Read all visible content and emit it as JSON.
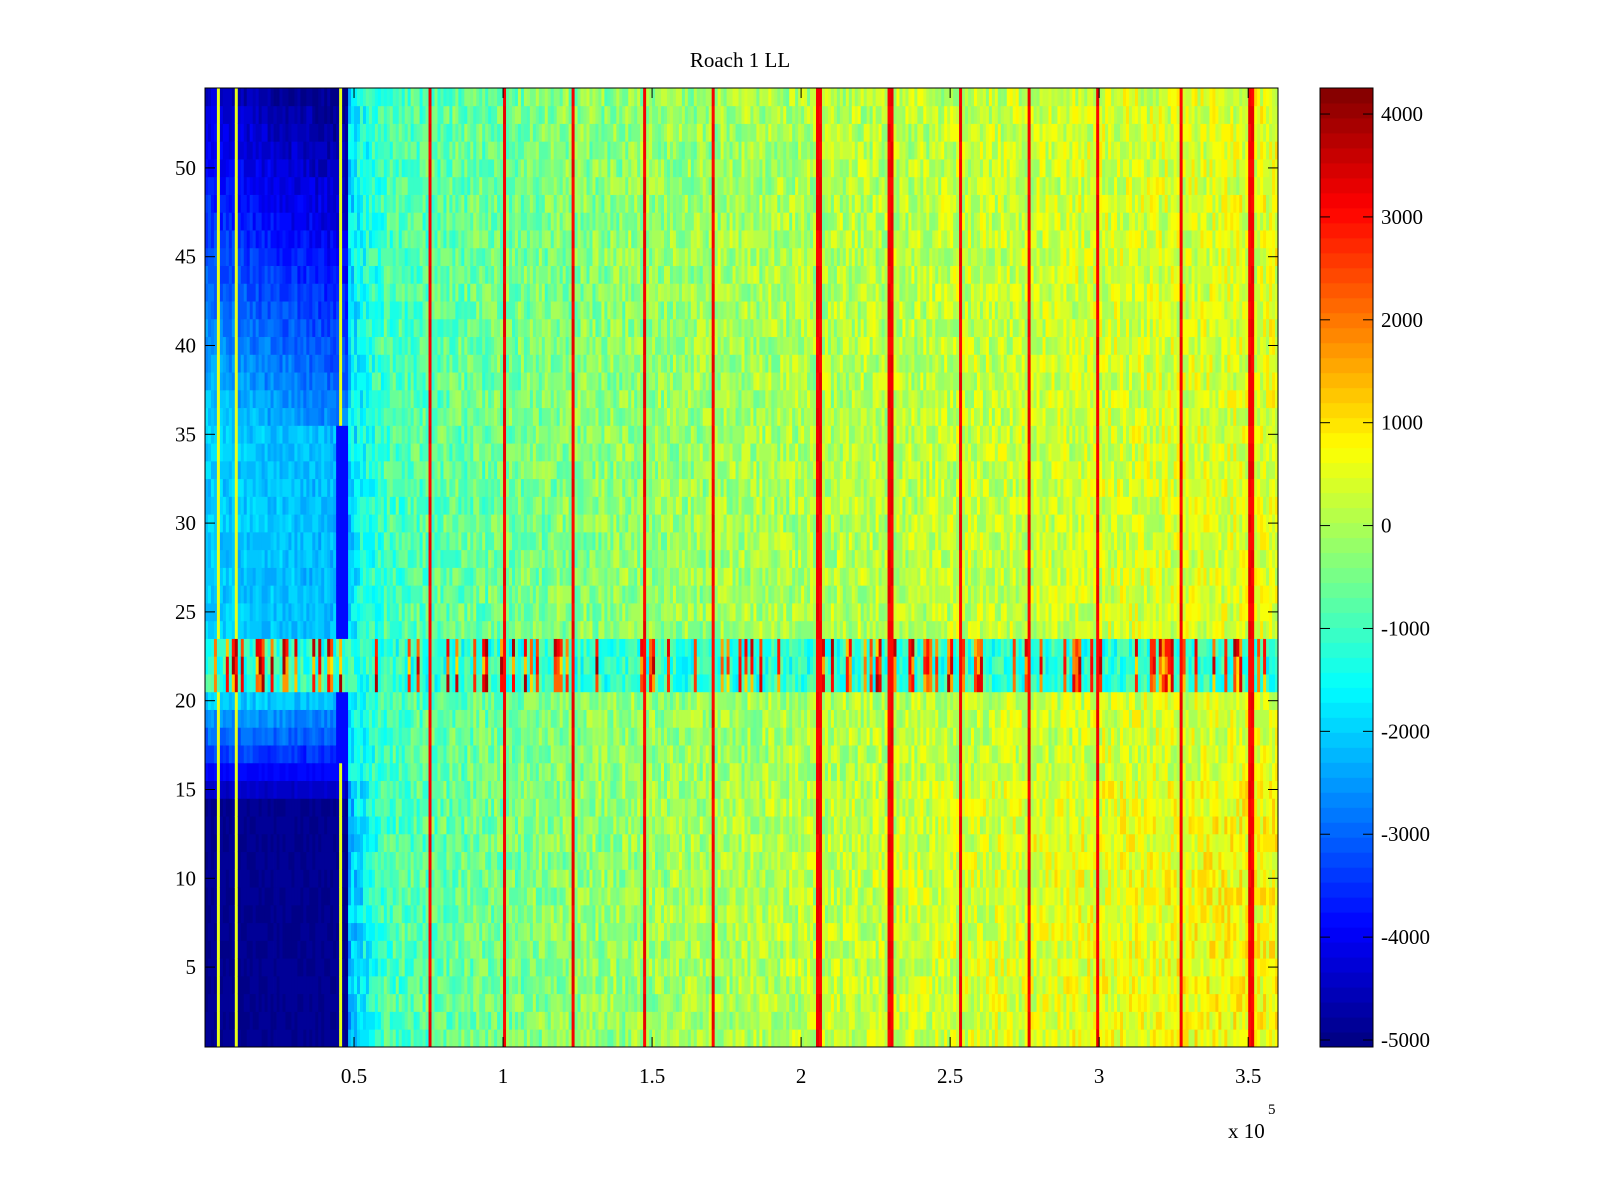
{
  "chart_data": {
    "type": "heatmap",
    "title": "Roach 1 LL",
    "xlabel": "",
    "ylabel": "",
    "x_exponent_label": "x 10",
    "x_exponent": "5",
    "xlim": [
      0,
      3.6
    ],
    "ylim": [
      0.5,
      54.5
    ],
    "rows": 54,
    "columns": 360,
    "xticks": [
      0.5,
      1,
      1.5,
      2,
      2.5,
      3,
      3.5
    ],
    "xtick_labels": [
      "0.5",
      "1",
      "1.5",
      "2",
      "2.5",
      "3",
      "3.5"
    ],
    "yticks": [
      5,
      10,
      15,
      20,
      25,
      30,
      35,
      40,
      45,
      50
    ],
    "ytick_labels": [
      "5",
      "10",
      "15",
      "20",
      "25",
      "30",
      "35",
      "40",
      "45",
      "50"
    ],
    "colorbar": {
      "colormap": "jet",
      "levels": 64,
      "clim": [
        -5068,
        4253
      ],
      "ticks": [
        -5000,
        -4000,
        -3000,
        -2000,
        -1000,
        0,
        1000,
        2000,
        3000,
        4000
      ],
      "tick_labels": [
        "-5000",
        "-4000",
        "-3000",
        "-2000",
        "-1000",
        "0",
        "1000",
        "2000",
        "3000",
        "4000"
      ]
    },
    "regions": {
      "blue_region_end_x": 0.48,
      "low_rows_max": 16,
      "low_rows_value": -5000,
      "upper_left_top_value": -4300,
      "upper_left_mid_value": -2000,
      "right_start_value": -1500,
      "right_end_value": 500,
      "hot_band_rows": [
        21,
        23
      ],
      "hot_band_peak": 4000
    },
    "stripe_x": [
      0.754,
      1.006,
      1.237,
      1.471,
      1.705,
      2.06,
      2.3,
      2.535,
      2.763,
      2.994,
      3.272,
      3.51
    ],
    "stripe_value": 3000,
    "grid": false
  }
}
